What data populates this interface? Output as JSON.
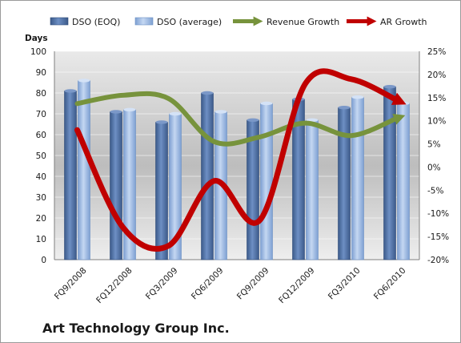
{
  "colors": {
    "dso_eoq": "#4f6fa4",
    "dso_avg": "#8fb0dd",
    "revenue_growth": "#77933c",
    "ar_growth": "#c00000"
  },
  "chart_data": {
    "type": "bar",
    "categories": [
      "FQ9/2008",
      "FQ12/2008",
      "FQ3/2009",
      "FQ6/2009",
      "FQ9/2009",
      "FQ12/2009",
      "FQ3/2010",
      "FQ6/2010"
    ],
    "ylabel": "Days",
    "ylim": [
      0,
      100
    ],
    "yticks": [
      "0",
      "10",
      "20",
      "30",
      "40",
      "50",
      "60",
      "70",
      "80",
      "90",
      "100"
    ],
    "y2lim": [
      -0.2,
      0.25
    ],
    "y2ticks": [
      "-20%",
      "-15%",
      "-10%",
      "-5%",
      "0%",
      "5%",
      "10%",
      "15%",
      "20%",
      "25%"
    ],
    "series": [
      {
        "name": "DSO (EOQ)",
        "type": "bar",
        "axis": "left",
        "values": [
          81,
          71,
          66,
          80,
          67,
          77,
          73,
          83
        ]
      },
      {
        "name": "DSO (average)",
        "type": "bar",
        "axis": "left",
        "values": [
          86,
          72,
          70,
          71,
          75,
          67,
          78,
          75
        ]
      },
      {
        "name": "Revenue Growth",
        "type": "line",
        "axis": "right",
        "values": [
          0.137,
          0.155,
          0.148,
          0.055,
          0.065,
          0.095,
          0.068,
          0.105
        ]
      },
      {
        "name": "AR Growth",
        "type": "line",
        "axis": "right",
        "values": [
          0.08,
          -0.13,
          -0.17,
          -0.03,
          -0.115,
          0.18,
          0.19,
          0.145
        ]
      }
    ],
    "legend_position": "top",
    "grid": true
  },
  "footer": {
    "company": "Art Technology Group Inc."
  }
}
